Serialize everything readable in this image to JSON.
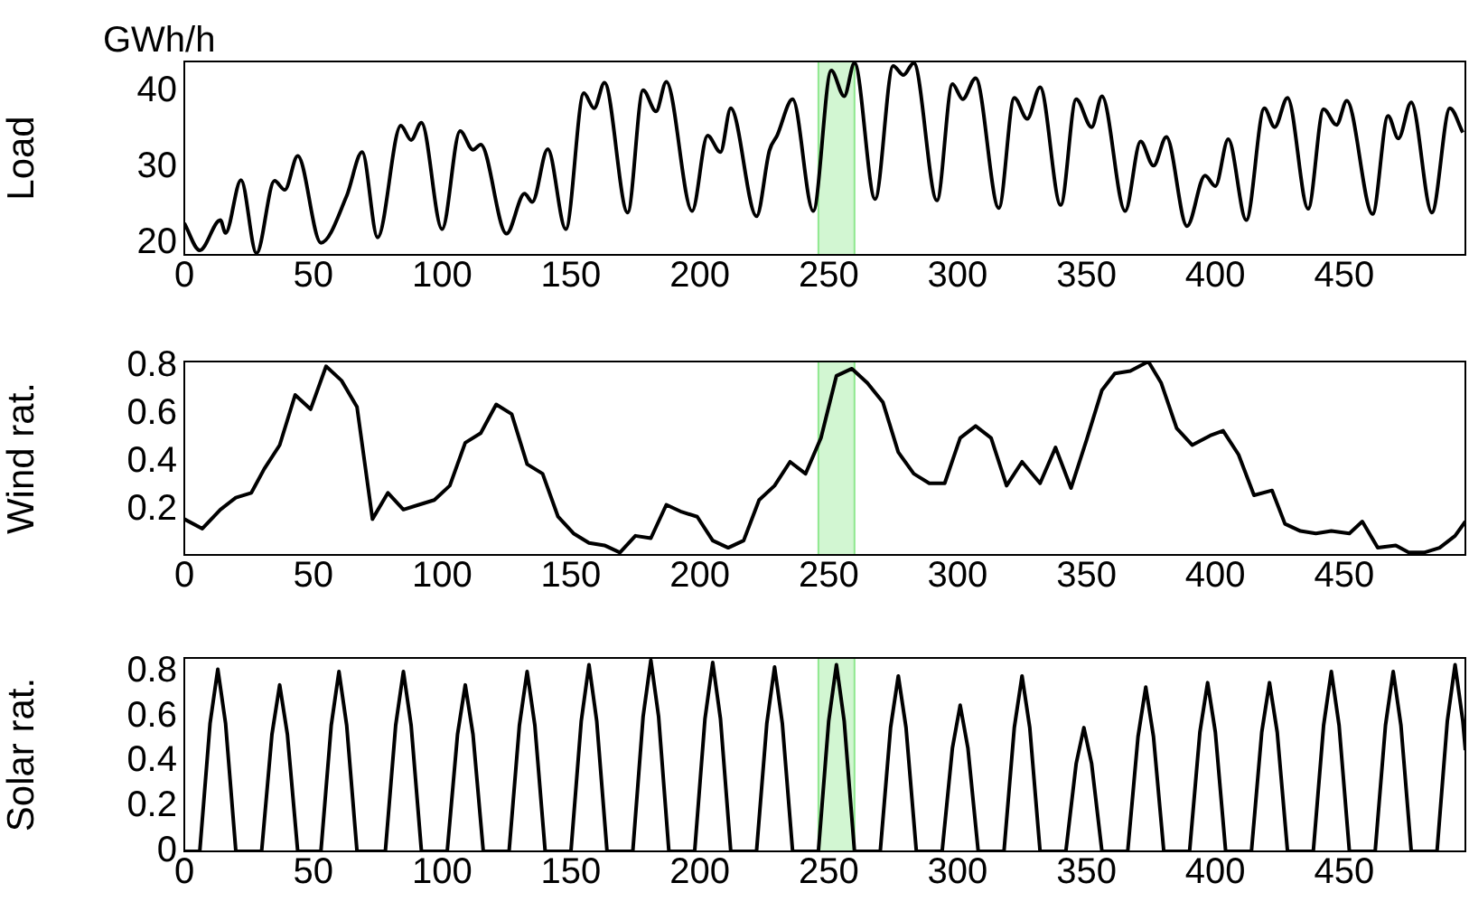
{
  "chart_data": [
    {
      "type": "line",
      "ylabel": "Load",
      "annotations": [
        "GWh/h"
      ],
      "xlim": [
        0,
        497
      ],
      "xticks": [
        0,
        50,
        100,
        150,
        200,
        250,
        300,
        350,
        400,
        450
      ],
      "ylim": [
        18.4,
        44
      ],
      "yticks": [
        20,
        30,
        40
      ],
      "grid": false,
      "legend": false,
      "marker": "none",
      "line_style": "solid",
      "bands": [
        {
          "axis": "x",
          "from": 246,
          "to": 260,
          "color": "#8fe88f"
        }
      ],
      "series": [
        {
          "color": "#000000",
          "x": [
            0,
            6,
            14,
            16,
            22,
            28,
            35,
            39,
            44,
            53,
            63,
            69,
            75,
            84,
            88,
            92,
            100,
            107,
            112,
            115,
            125,
            132,
            135,
            141,
            148,
            155,
            159,
            163,
            172,
            178,
            183,
            187,
            197,
            203,
            208,
            212,
            222,
            227,
            230,
            236,
            244,
            251,
            256,
            260,
            268,
            275,
            279,
            283,
            292,
            298,
            302,
            307,
            316,
            322,
            327,
            332,
            340,
            346,
            352,
            356,
            365,
            371,
            376,
            381,
            389,
            396,
            400,
            405,
            412,
            419,
            423,
            428,
            436,
            442,
            447,
            451,
            461,
            467,
            471,
            476,
            484,
            491,
            496
          ],
          "values": [
            22.6,
            19.0,
            23.0,
            21.3,
            28.3,
            18.6,
            28.2,
            27.0,
            31.5,
            20.0,
            26.2,
            32.0,
            20.7,
            35.5,
            33.6,
            35.9,
            21.8,
            34.8,
            32.3,
            33.0,
            21.2,
            26.5,
            25.4,
            32.4,
            21.8,
            39.8,
            37.8,
            41.2,
            24.0,
            40.2,
            37.4,
            41.3,
            24.2,
            34.2,
            32.0,
            37.8,
            23.5,
            32.2,
            34.2,
            39.0,
            24.2,
            42.8,
            39.4,
            43.8,
            25.8,
            43.4,
            42.2,
            43.8,
            25.6,
            41.0,
            39.0,
            41.8,
            24.6,
            39.2,
            36.4,
            40.6,
            25.0,
            39.0,
            35.3,
            39.4,
            24.2,
            33.4,
            30.2,
            34.0,
            22.2,
            28.9,
            27.5,
            33.7,
            23.0,
            37.8,
            35.3,
            39.2,
            24.5,
            37.7,
            35.6,
            38.8,
            23.8,
            36.8,
            33.8,
            38.6,
            24.0,
            37.8,
            34.6
          ]
        }
      ]
    },
    {
      "type": "line",
      "ylabel": "Wind rat.",
      "xlim": [
        0,
        497
      ],
      "xticks": [
        0,
        50,
        100,
        150,
        200,
        250,
        300,
        350,
        400,
        450
      ],
      "ylim": [
        0.01,
        0.82
      ],
      "yticks": [
        0.2,
        0.4,
        0.6,
        0.8
      ],
      "grid": false,
      "legend": false,
      "marker": "none",
      "line_style": "solid",
      "bands": [
        {
          "axis": "x",
          "from": 246,
          "to": 260,
          "color": "#8fe88f"
        }
      ],
      "series": [
        {
          "color": "#000000",
          "x": [
            0,
            7,
            14,
            20,
            26,
            31,
            37,
            43,
            49,
            55,
            61,
            67,
            73,
            79,
            85,
            91,
            97,
            103,
            109,
            115,
            121,
            127,
            133,
            139,
            145,
            151,
            157,
            163,
            169,
            175,
            181,
            187,
            193,
            199,
            205,
            211,
            217,
            223,
            229,
            235,
            241,
            247,
            253,
            259,
            265,
            271,
            277,
            283,
            289,
            295,
            301,
            307,
            313,
            319,
            325,
            332,
            338,
            344,
            350,
            356,
            361,
            367,
            374,
            379,
            385,
            391,
            398,
            403,
            409,
            415,
            422,
            427,
            433,
            439,
            445,
            452,
            457,
            463,
            470,
            475,
            481,
            487,
            493,
            497
          ],
          "values": [
            0.16,
            0.12,
            0.2,
            0.25,
            0.27,
            0.37,
            0.47,
            0.68,
            0.62,
            0.8,
            0.74,
            0.63,
            0.16,
            0.27,
            0.2,
            0.22,
            0.24,
            0.3,
            0.48,
            0.52,
            0.64,
            0.6,
            0.39,
            0.35,
            0.17,
            0.1,
            0.06,
            0.05,
            0.02,
            0.09,
            0.08,
            0.22,
            0.19,
            0.17,
            0.07,
            0.04,
            0.07,
            0.24,
            0.3,
            0.4,
            0.35,
            0.5,
            0.76,
            0.79,
            0.73,
            0.65,
            0.44,
            0.35,
            0.31,
            0.31,
            0.5,
            0.55,
            0.5,
            0.3,
            0.4,
            0.31,
            0.46,
            0.29,
            0.49,
            0.7,
            0.77,
            0.78,
            0.82,
            0.73,
            0.54,
            0.47,
            0.51,
            0.53,
            0.43,
            0.26,
            0.28,
            0.14,
            0.11,
            0.1,
            0.11,
            0.1,
            0.15,
            0.04,
            0.05,
            0.02,
            0.02,
            0.04,
            0.09,
            0.15
          ]
        }
      ]
    },
    {
      "type": "line",
      "ylabel": "Solar rat.",
      "xlim": [
        0,
        497
      ],
      "xticks": [
        0,
        50,
        100,
        150,
        200,
        250,
        300,
        350,
        400,
        450
      ],
      "ylim": [
        0,
        0.86
      ],
      "yticks": [
        0,
        0.2,
        0.4,
        0.6,
        0.8
      ],
      "grid": false,
      "legend": false,
      "marker": "none",
      "line_style": "solid",
      "bands": [
        {
          "axis": "x",
          "from": 246,
          "to": 260,
          "color": "#8fe88f"
        }
      ],
      "series": [
        {
          "color": "#000000",
          "x": [
            0,
            6,
            10,
            13,
            16,
            20,
            30,
            34,
            37,
            40,
            44,
            53,
            57,
            60,
            63,
            67,
            78,
            82,
            85,
            88,
            92,
            102,
            106,
            109,
            112,
            116,
            126,
            130,
            133,
            136,
            140,
            150,
            154,
            157,
            160,
            164,
            174,
            178,
            181,
            184,
            188,
            198,
            202,
            205,
            208,
            212,
            222,
            226,
            229,
            232,
            236,
            246,
            250,
            253,
            256,
            260,
            270,
            274,
            277,
            280,
            284,
            294,
            298,
            301,
            304,
            308,
            318,
            322,
            325,
            328,
            332,
            342,
            346,
            349,
            352,
            356,
            366,
            370,
            373,
            376,
            380,
            390,
            394,
            397,
            400,
            404,
            414,
            418,
            421,
            424,
            428,
            438,
            442,
            445,
            448,
            452,
            462,
            466,
            469,
            472,
            476,
            486,
            490,
            493,
            496,
            497
          ],
          "values": [
            0,
            0,
            0.57,
            0.81,
            0.57,
            0,
            0,
            0.52,
            0.74,
            0.52,
            0,
            0,
            0.56,
            0.8,
            0.56,
            0,
            0,
            0.56,
            0.8,
            0.56,
            0,
            0,
            0.52,
            0.74,
            0.52,
            0,
            0,
            0.56,
            0.8,
            0.56,
            0,
            0,
            0.58,
            0.83,
            0.58,
            0,
            0,
            0.6,
            0.85,
            0.6,
            0,
            0,
            0.59,
            0.84,
            0.59,
            0,
            0,
            0.57,
            0.82,
            0.57,
            0,
            0,
            0.58,
            0.83,
            0.58,
            0,
            0,
            0.55,
            0.78,
            0.55,
            0,
            0,
            0.46,
            0.65,
            0.46,
            0,
            0,
            0.55,
            0.78,
            0.55,
            0,
            0,
            0.39,
            0.55,
            0.39,
            0,
            0,
            0.51,
            0.73,
            0.51,
            0,
            0,
            0.53,
            0.75,
            0.53,
            0,
            0,
            0.53,
            0.75,
            0.53,
            0,
            0,
            0.56,
            0.8,
            0.56,
            0,
            0,
            0.56,
            0.8,
            0.56,
            0,
            0,
            0.58,
            0.83,
            0.58,
            0.45
          ]
        }
      ]
    }
  ]
}
